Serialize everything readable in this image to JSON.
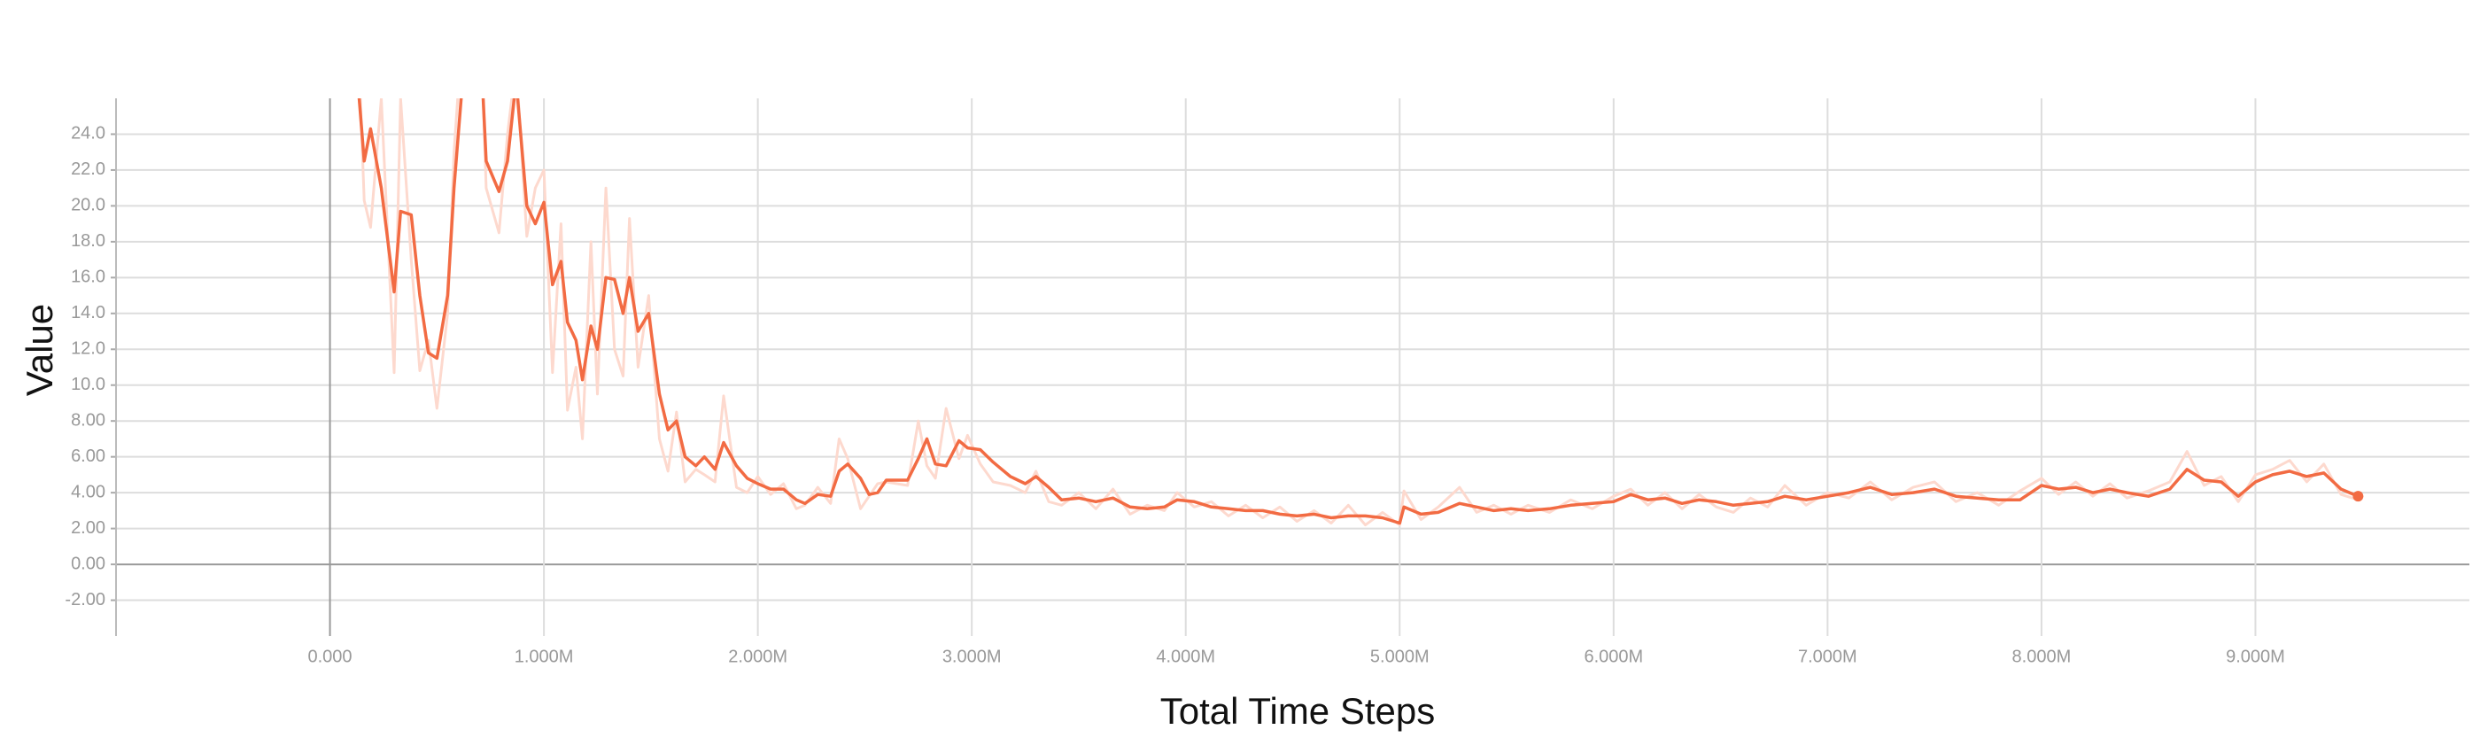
{
  "chart_data": {
    "type": "line",
    "ylabel": "Value",
    "xlabel": "Total Time Steps",
    "xlim": [
      -1000000,
      10000000
    ],
    "xticks": [
      {
        "value": 0,
        "label": "0.000"
      },
      {
        "value": 1000000,
        "label": "1.000M"
      },
      {
        "value": 2000000,
        "label": "2.000M"
      },
      {
        "value": 3000000,
        "label": "3.000M"
      },
      {
        "value": 4000000,
        "label": "4.000M"
      },
      {
        "value": 5000000,
        "label": "5.000M"
      },
      {
        "value": 6000000,
        "label": "6.000M"
      },
      {
        "value": 7000000,
        "label": "7.000M"
      },
      {
        "value": 8000000,
        "label": "8.000M"
      },
      {
        "value": 9000000,
        "label": "9.000M"
      }
    ],
    "ylim": [
      -4,
      26
    ],
    "yticks": [
      {
        "value": -2,
        "label": "-2.00"
      },
      {
        "value": 0,
        "label": "0.00"
      },
      {
        "value": 2,
        "label": "2.00"
      },
      {
        "value": 4,
        "label": "4.00"
      },
      {
        "value": 6,
        "label": "6.00"
      },
      {
        "value": 8,
        "label": "8.00"
      },
      {
        "value": 10,
        "label": "10.0"
      },
      {
        "value": 12,
        "label": "12.0"
      },
      {
        "value": 14,
        "label": "14.0"
      },
      {
        "value": 16,
        "label": "16.0"
      },
      {
        "value": 18,
        "label": "18.0"
      },
      {
        "value": 20,
        "label": "20.0"
      },
      {
        "value": 22,
        "label": "22.0"
      },
      {
        "value": 24,
        "label": "24.0"
      }
    ],
    "grid": true,
    "x": [
      130000,
      160000,
      190000,
      240000,
      300000,
      330000,
      380000,
      420000,
      460000,
      500000,
      550000,
      580000,
      620000,
      700000,
      730000,
      790000,
      830000,
      870000,
      920000,
      960000,
      1000000,
      1040000,
      1080000,
      1110000,
      1150000,
      1180000,
      1220000,
      1250000,
      1290000,
      1330000,
      1370000,
      1400000,
      1440000,
      1490000,
      1540000,
      1580000,
      1620000,
      1660000,
      1710000,
      1750000,
      1800000,
      1840000,
      1900000,
      1950000,
      2000000,
      2060000,
      2120000,
      2180000,
      2220000,
      2280000,
      2340000,
      2380000,
      2420000,
      2480000,
      2520000,
      2560000,
      2600000,
      2700000,
      2750000,
      2790000,
      2830000,
      2880000,
      2940000,
      2980000,
      3040000,
      3100000,
      3180000,
      3250000,
      3300000,
      3360000,
      3420000,
      3500000,
      3580000,
      3660000,
      3740000,
      3820000,
      3900000,
      3960000,
      4040000,
      4120000,
      4200000,
      4280000,
      4360000,
      4440000,
      4520000,
      4600000,
      4680000,
      4760000,
      4840000,
      4920000,
      5000000,
      5020000,
      5100000,
      5180000,
      5280000,
      5360000,
      5440000,
      5520000,
      5600000,
      5700000,
      5800000,
      5900000,
      6000000,
      6080000,
      6160000,
      6240000,
      6320000,
      6400000,
      6480000,
      6560000,
      6640000,
      6720000,
      6800000,
      6900000,
      7000000,
      7100000,
      7200000,
      7300000,
      7400000,
      7500000,
      7600000,
      7700000,
      7800000,
      7900000,
      8000000,
      8080000,
      8160000,
      8240000,
      8320000,
      8400000,
      8500000,
      8600000,
      8680000,
      8760000,
      8840000,
      8920000,
      9000000,
      9080000,
      9160000,
      9240000,
      9320000,
      9400000,
      9480000
    ],
    "series": [
      {
        "color": "#fdd9ce",
        "values": [
          30,
          20.3,
          18.8,
          26,
          10.7,
          26,
          17,
          10.8,
          12.5,
          8.7,
          14,
          23,
          30,
          32,
          21,
          18.5,
          24,
          28,
          18.3,
          21,
          22,
          10.7,
          19,
          8.6,
          11,
          7,
          18,
          9.5,
          21,
          12,
          10.5,
          19.3,
          11,
          15,
          7,
          5.2,
          8.5,
          4.6,
          5.3,
          5,
          4.6,
          9.4,
          4.3,
          4.0,
          4.9,
          3.9,
          4.5,
          3.1,
          3.3,
          4.3,
          3.4,
          7.0,
          5.9,
          3.1,
          3.8,
          4.5,
          4.6,
          4.4,
          8.0,
          5.5,
          4.8,
          8.7,
          5.9,
          7.2,
          5.6,
          4.6,
          4.4,
          4.0,
          5.2,
          3.5,
          3.3,
          4.0,
          3.1,
          4.2,
          2.8,
          3.3,
          3.0,
          4.0,
          3.2,
          3.5,
          2.7,
          3.3,
          2.6,
          3.2,
          2.4,
          3.0,
          2.3,
          3.3,
          2.2,
          2.9,
          2.2,
          4.1,
          2.5,
          3.2,
          4.3,
          2.9,
          3.3,
          2.8,
          3.3,
          2.9,
          3.6,
          3.1,
          3.8,
          4.2,
          3.3,
          4.0,
          3.1,
          3.9,
          3.2,
          2.9,
          3.7,
          3.2,
          4.4,
          3.3,
          4.0,
          3.7,
          4.6,
          3.6,
          4.3,
          4.6,
          3.5,
          4.0,
          3.3,
          4.1,
          4.8,
          3.9,
          4.6,
          3.8,
          4.5,
          3.7,
          4.1,
          4.6,
          6.3,
          4.4,
          4.9,
          3.5,
          5.0,
          5.3,
          5.8,
          4.6,
          5.6,
          3.9,
          3.6
        ]
      },
      {
        "color": "#f26b43",
        "values": [
          27,
          22.5,
          24.3,
          21,
          15.2,
          19.7,
          19.5,
          15,
          11.8,
          11.5,
          15,
          21,
          27,
          30,
          22.5,
          20.8,
          22.5,
          27,
          20,
          19,
          20.2,
          15.6,
          16.9,
          13.5,
          12.5,
          10.3,
          13.3,
          12,
          16,
          15.9,
          14,
          16,
          13,
          14,
          9.5,
          7.5,
          8,
          6,
          5.5,
          6,
          5.3,
          6.8,
          5.5,
          4.8,
          4.5,
          4.2,
          4.2,
          3.6,
          3.4,
          3.9,
          3.8,
          5.2,
          5.6,
          4.8,
          3.9,
          4.0,
          4.7,
          4.7,
          5.9,
          7.0,
          5.6,
          5.5,
          6.9,
          6.5,
          6.4,
          5.7,
          4.9,
          4.5,
          4.9,
          4.3,
          3.6,
          3.7,
          3.5,
          3.7,
          3.2,
          3.1,
          3.2,
          3.6,
          3.5,
          3.2,
          3.1,
          3.0,
          3.0,
          2.8,
          2.7,
          2.8,
          2.6,
          2.7,
          2.7,
          2.6,
          2.3,
          3.2,
          2.8,
          2.9,
          3.4,
          3.2,
          3.0,
          3.1,
          3.0,
          3.1,
          3.3,
          3.4,
          3.5,
          3.9,
          3.6,
          3.7,
          3.4,
          3.6,
          3.5,
          3.3,
          3.4,
          3.5,
          3.8,
          3.6,
          3.8,
          4.0,
          4.3,
          3.9,
          4.0,
          4.2,
          3.8,
          3.7,
          3.6,
          3.6,
          4.4,
          4.2,
          4.3,
          4.0,
          4.2,
          4.0,
          3.8,
          4.2,
          5.3,
          4.7,
          4.6,
          3.8,
          4.6,
          5.0,
          5.2,
          4.9,
          5.1,
          4.2,
          3.8
        ]
      }
    ]
  }
}
